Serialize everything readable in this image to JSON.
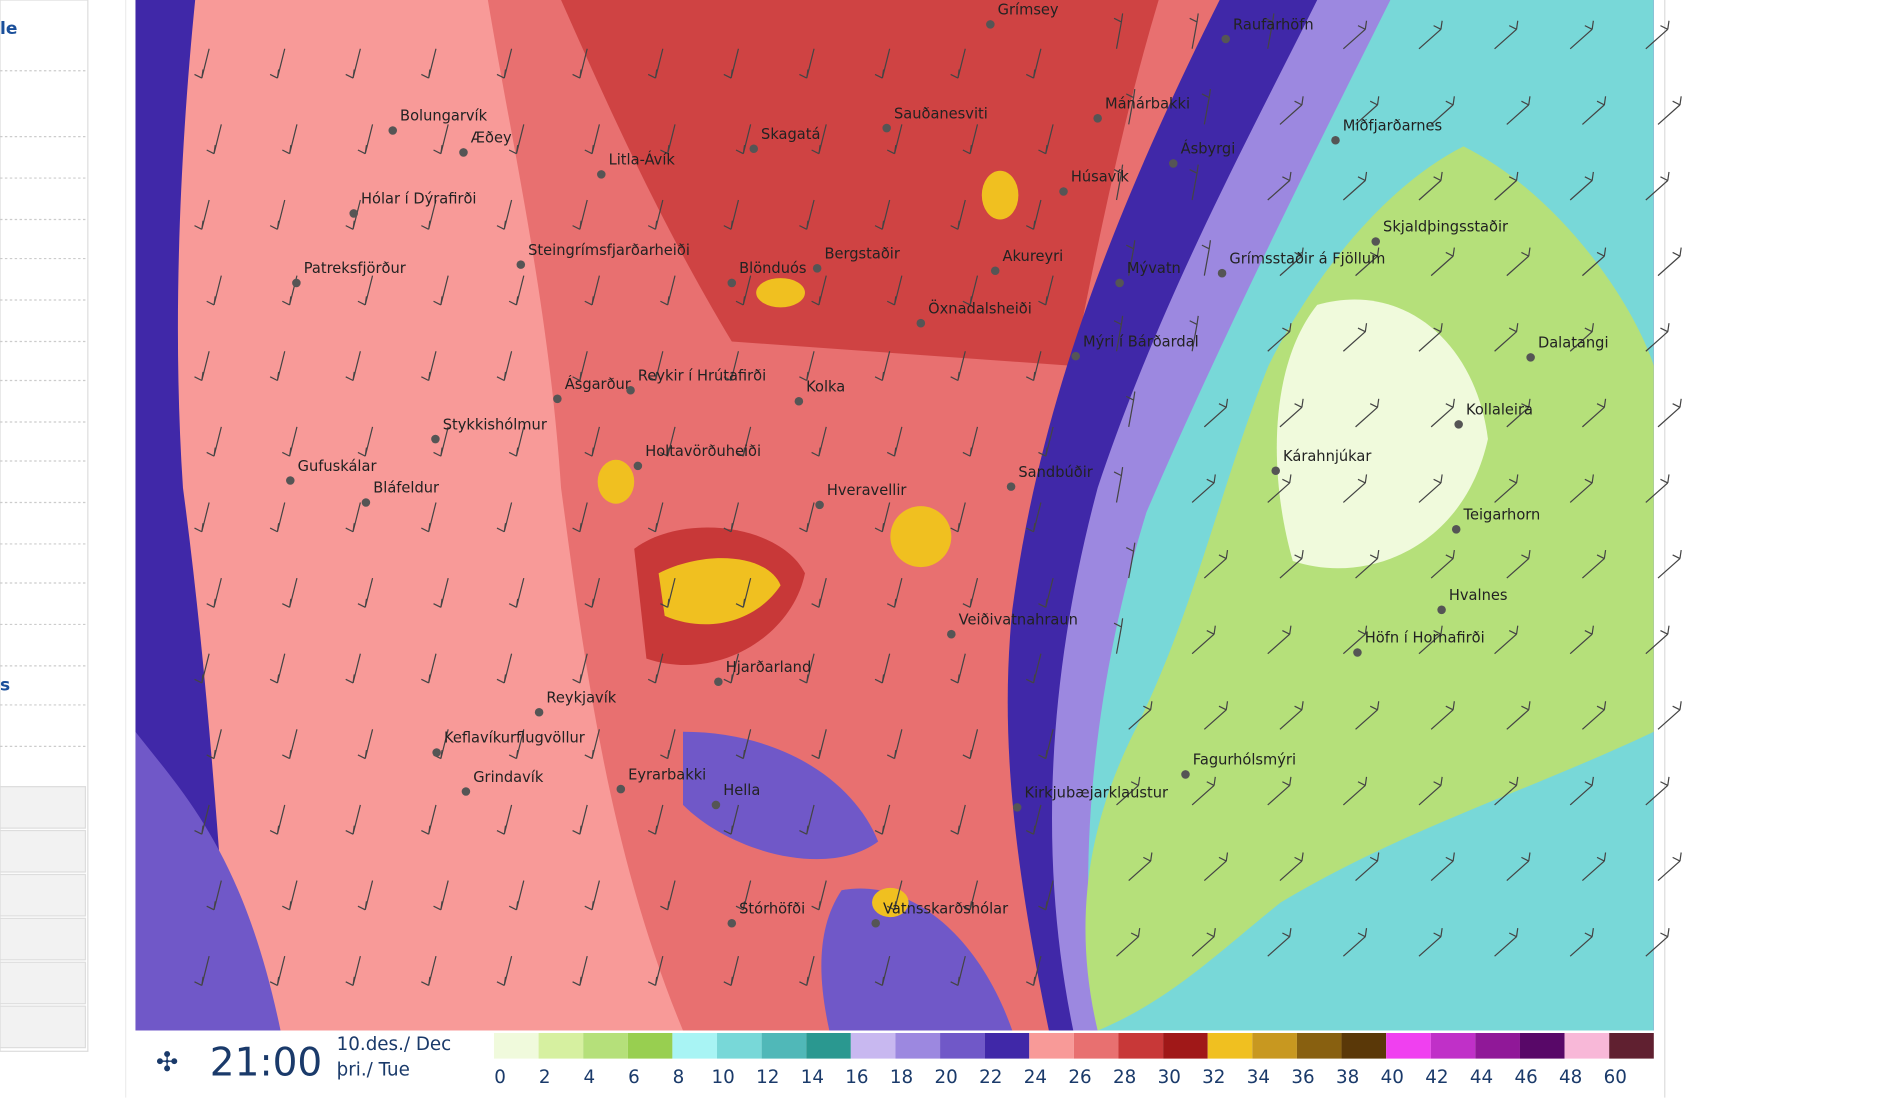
{
  "sidebar": {
    "items": [
      "le",
      "s"
    ]
  },
  "map": {
    "places": [
      "Grímsey",
      "Raufarhöfn",
      "Bolungarvík",
      "Æðey",
      "Litla-Ávík",
      "Skagatá",
      "Sauðanesviti",
      "Mánárbakki",
      "Miðfjarðarnes",
      "Ásbyrgi",
      "Húsavík",
      "Hólar í Dýrafirði",
      "Skjaldþingsstaðir",
      "Steingrímsfjarðarheiði",
      "Blönduós",
      "Bergstaðir",
      "Akureyri",
      "Mývatn",
      "Grímsstaðir á Fjöllum",
      "Patreksfjörður",
      "Öxnadalsheiði",
      "Mýri í Bárðardal",
      "Dalatangi",
      "Ásgarður",
      "Reykir í Hrútafirði",
      "Kolka",
      "Kollaleira",
      "Stykkishólmur",
      "Kárahnjúkar",
      "Holtavörðuheiði",
      "Gufuskálar",
      "Sandbúðir",
      "Bláfeldur",
      "Hveravellir",
      "Teigarhorn",
      "Hvalnes",
      "Veiðivatnahraun",
      "Höfn í Hornafirði",
      "Hjarðarland",
      "Reykjavík",
      "Keflavíkurflugvöllur",
      "Fagurhólsmýri",
      "Grindavík",
      "Eyrarbakki",
      "Hella",
      "Kirkjubæjarklaustur",
      "Stórhöfði",
      "Vatnsskarðshólar"
    ]
  },
  "footer": {
    "time": "21:00",
    "date": "10.des./ Dec",
    "weekday": "þri./ Tue",
    "legend": [
      {
        "label": "0",
        "color": "#f0fadc"
      },
      {
        "label": "2",
        "color": "#d6f0a0"
      },
      {
        "label": "4",
        "color": "#b5e07a"
      },
      {
        "label": "6",
        "color": "#98cf50"
      },
      {
        "label": "8",
        "color": "#a8f4f4"
      },
      {
        "label": "10",
        "color": "#78d8d8"
      },
      {
        "label": "12",
        "color": "#50b8b8"
      },
      {
        "label": "14",
        "color": "#2a9890"
      },
      {
        "label": "16",
        "color": "#c8b8f0"
      },
      {
        "label": "18",
        "color": "#9c88e0"
      },
      {
        "label": "20",
        "color": "#7058c8"
      },
      {
        "label": "22",
        "color": "#4028a8"
      },
      {
        "label": "24",
        "color": "#f89a98"
      },
      {
        "label": "26",
        "color": "#e87070"
      },
      {
        "label": "28",
        "color": "#c83838"
      },
      {
        "label": "30",
        "color": "#a01818"
      },
      {
        "label": "32",
        "color": "#f0c020"
      },
      {
        "label": "34",
        "color": "#c89820"
      },
      {
        "label": "36",
        "color": "#886010"
      },
      {
        "label": "38",
        "color": "#5a3808"
      },
      {
        "label": "40",
        "color": "#f040f0"
      },
      {
        "label": "42",
        "color": "#c030c8"
      },
      {
        "label": "44",
        "color": "#901898"
      },
      {
        "label": "46",
        "color": "#580868"
      },
      {
        "label": "48",
        "color": "#f8b8d8"
      },
      {
        "label": "60",
        "color": "#602030"
      }
    ]
  }
}
